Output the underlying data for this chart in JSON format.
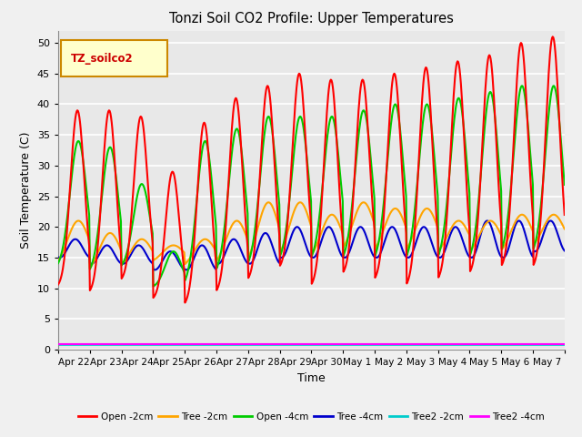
{
  "title": "Tonzi Soil CO2 Profile: Upper Temperatures",
  "xlabel": "Time",
  "ylabel": "Soil Temperature (C)",
  "ylim": [
    0,
    52
  ],
  "yticks": [
    0,
    5,
    10,
    15,
    20,
    25,
    30,
    35,
    40,
    45,
    50
  ],
  "x_labels": [
    "Apr 22",
    "Apr 23",
    "Apr 24",
    "Apr 25",
    "Apr 26",
    "Apr 27",
    "Apr 28",
    "Apr 29",
    "Apr 30",
    "May 1",
    "May 2",
    "May 3",
    "May 4",
    "May 5",
    "May 6",
    "May 7"
  ],
  "n_days": 16,
  "pts_per_day": 48,
  "background_color": "#e8e8e8",
  "grid_color": "#ffffff",
  "fig_bg": "#f0f0f0",
  "legend_label": "TZ_soilco2",
  "legend_box_color": "#ffffcc",
  "legend_box_edge": "#cc8800",
  "legend_text_color": "#cc0000",
  "series_colors": {
    "open_2cm": "#ff0000",
    "tree_2cm": "#ffa500",
    "open_4cm": "#00cc00",
    "tree_4cm": "#0000cc",
    "tree2_2cm": "#00cccc",
    "tree2_4cm": "#ff00ff"
  },
  "series_labels": [
    "Open -2cm",
    "Tree -2cm",
    "Open -4cm",
    "Tree -4cm",
    "Tree2 -2cm",
    "Tree2 -4cm"
  ],
  "open2_peaks": [
    39,
    39,
    38,
    29,
    37,
    41,
    43,
    45,
    44,
    44,
    45,
    46,
    47,
    48,
    50,
    51
  ],
  "open2_troughs": [
    10,
    9,
    11,
    8,
    7,
    9,
    11,
    13,
    10,
    12,
    11,
    10,
    11,
    12,
    13,
    13
  ],
  "tree2_peaks": [
    21,
    19,
    18,
    17,
    18,
    21,
    24,
    24,
    22,
    24,
    23,
    23,
    21,
    21,
    22,
    22
  ],
  "tree2_troughs": [
    13,
    12,
    13,
    14,
    13,
    13,
    13,
    14,
    14,
    15,
    15,
    15,
    15,
    15,
    15,
    16
  ],
  "open4_peaks": [
    34,
    33,
    27,
    16,
    34,
    36,
    38,
    38,
    38,
    39,
    40,
    40,
    41,
    42,
    43,
    43
  ],
  "open4_troughs": [
    13,
    12,
    13,
    10,
    10,
    12,
    13,
    14,
    14,
    14,
    14,
    14,
    14,
    14,
    15,
    15
  ],
  "tree4_peaks": [
    18,
    17,
    17,
    16,
    17,
    18,
    19,
    20,
    20,
    20,
    20,
    20,
    20,
    21,
    21,
    21
  ],
  "tree4_troughs": [
    15,
    14,
    14,
    13,
    13,
    14,
    14,
    15,
    15,
    15,
    15,
    15,
    15,
    15,
    15,
    16
  ]
}
